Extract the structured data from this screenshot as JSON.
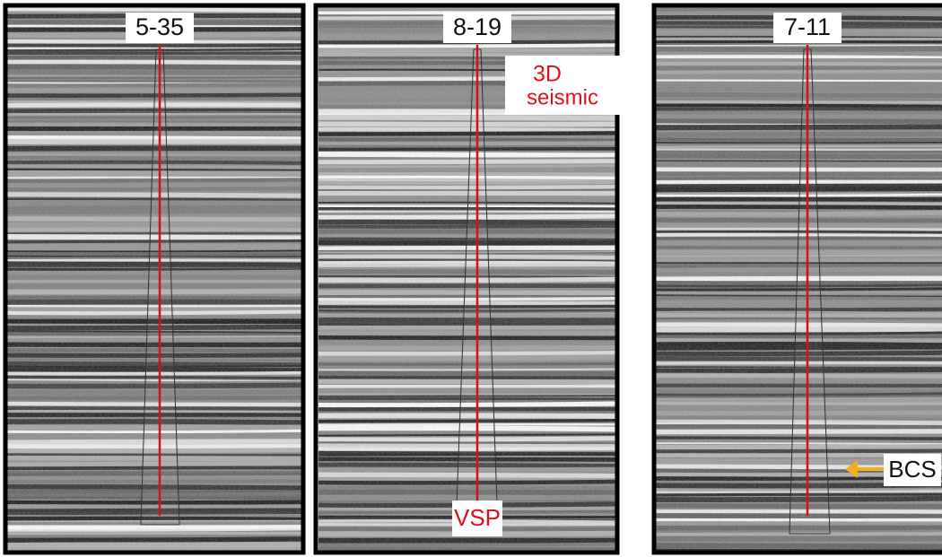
{
  "panels": [
    {
      "label": "5-35"
    },
    {
      "label": "8-19"
    },
    {
      "label": "7-11"
    }
  ],
  "annotations": {
    "three_d": "3D",
    "seismic": "seismic",
    "vsp": "VSP",
    "bcs": "BCS"
  }
}
